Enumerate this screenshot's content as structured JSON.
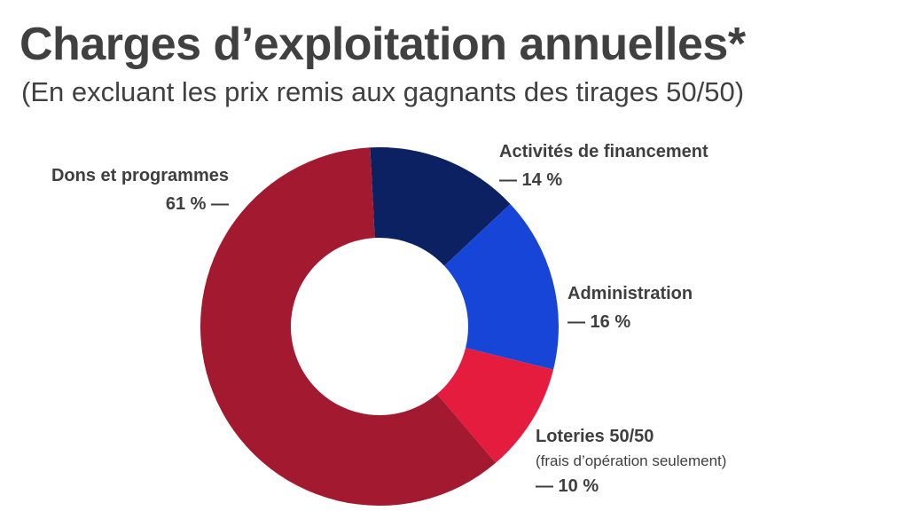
{
  "header": {
    "title": "Charges d’exploitation annuelles*",
    "subtitle": "(En excluant les prix remis aux gagnants des tirages 50/50)"
  },
  "chart_data": {
    "type": "pie",
    "donut": true,
    "title": "Charges d’exploitation annuelles*",
    "subtitle": "(En excluant les prix remis aux gagnants des tirages 50/50)",
    "categories": [
      "Dons et programmes",
      "Activités de financement",
      "Administration",
      "Loteries 50/50"
    ],
    "values": [
      61,
      14,
      16,
      10
    ],
    "value_labels": [
      "61 % —",
      "— 14 %",
      "— 16 %",
      "— 10 %"
    ],
    "notes": [
      "",
      "",
      "",
      "(frais d’opération seulement)"
    ],
    "colors": [
      "#a3192f",
      "#0c2162",
      "#1745d8",
      "#e51c3d"
    ],
    "start_angle_deg": -3,
    "unit": "%"
  }
}
